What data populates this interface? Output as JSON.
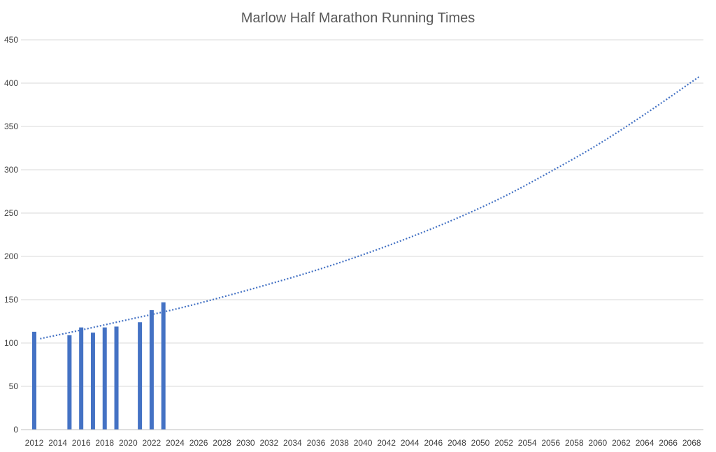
{
  "chart_data": {
    "type": "bar",
    "title": "Marlow Half Marathon Running Times",
    "xlabel": "",
    "ylabel": "",
    "x_ticks": [
      2012,
      2014,
      2016,
      2018,
      2020,
      2022,
      2024,
      2026,
      2028,
      2030,
      2032,
      2034,
      2036,
      2038,
      2040,
      2042,
      2044,
      2046,
      2048,
      2050,
      2052,
      2054,
      2056,
      2058,
      2060,
      2062,
      2064,
      2066,
      2068
    ],
    "xlim": [
      2012,
      2069
    ],
    "ylim": [
      0,
      450
    ],
    "y_ticks": [
      0,
      50,
      100,
      150,
      200,
      250,
      300,
      350,
      400,
      450
    ],
    "grid": true,
    "series": [
      {
        "type": "bar",
        "color": "#4472c4",
        "points": [
          {
            "x": 2012,
            "y": 113
          },
          {
            "x": 2015,
            "y": 109
          },
          {
            "x": 2016,
            "y": 118
          },
          {
            "x": 2017,
            "y": 112
          },
          {
            "x": 2018,
            "y": 118
          },
          {
            "x": 2019,
            "y": 119
          },
          {
            "x": 2021,
            "y": 124
          },
          {
            "x": 2022,
            "y": 138
          },
          {
            "x": 2023,
            "y": 147
          }
        ]
      },
      {
        "type": "trendline",
        "style": "dotted",
        "color": "#4472c4",
        "points": [
          {
            "x": 2012.5,
            "y": 105
          },
          {
            "x": 2016,
            "y": 115
          },
          {
            "x": 2020,
            "y": 127
          },
          {
            "x": 2024,
            "y": 139
          },
          {
            "x": 2028,
            "y": 153
          },
          {
            "x": 2032,
            "y": 168
          },
          {
            "x": 2036,
            "y": 184
          },
          {
            "x": 2040,
            "y": 202
          },
          {
            "x": 2044,
            "y": 222
          },
          {
            "x": 2048,
            "y": 244
          },
          {
            "x": 2052,
            "y": 269
          },
          {
            "x": 2056,
            "y": 298
          },
          {
            "x": 2060,
            "y": 329
          },
          {
            "x": 2064,
            "y": 364
          },
          {
            "x": 2068.7,
            "y": 408
          }
        ]
      }
    ]
  }
}
